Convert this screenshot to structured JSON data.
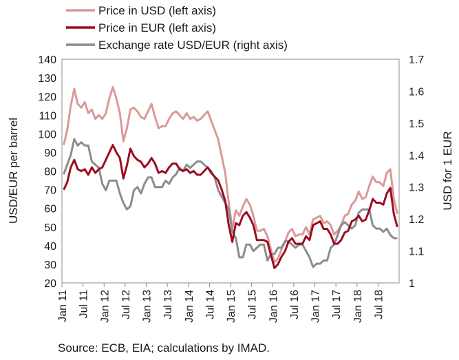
{
  "chart_data": {
    "type": "line",
    "source_note": "Source: ECB, EIA; calculations by IMAD.",
    "ylabel": "USD/EUR per barrel",
    "y2label": "USD for 1 EUR",
    "ylim": [
      20,
      140
    ],
    "y2lim": [
      1.0,
      1.7
    ],
    "y_ticks": [
      "20",
      "30",
      "40",
      "50",
      "60",
      "70",
      "80",
      "90",
      "100",
      "110",
      "120",
      "130",
      "140"
    ],
    "y2_ticks": [
      "1",
      "1.1",
      "1.2",
      "1.3",
      "1.4",
      "1.5",
      "1.6",
      "1.7"
    ],
    "x_tick_labels": [
      "Jan 11",
      "Jul 11",
      "Jan 12",
      "Jul 12",
      "Jan 13",
      "Jul 13",
      "Jan 14",
      "Jul 14",
      "Jan 15",
      "Jul 15",
      "Jan 16",
      "Jul 16",
      "Jan 17",
      "Jul 17",
      "Jan 18",
      "Jul 18"
    ],
    "grid": false,
    "legend_position": "top",
    "x_dates": [
      "2011-01",
      "2011-02",
      "2011-03",
      "2011-04",
      "2011-05",
      "2011-06",
      "2011-07",
      "2011-08",
      "2011-09",
      "2011-10",
      "2011-11",
      "2011-12",
      "2012-01",
      "2012-02",
      "2012-03",
      "2012-04",
      "2012-05",
      "2012-06",
      "2012-07",
      "2012-08",
      "2012-09",
      "2012-10",
      "2012-11",
      "2012-12",
      "2013-01",
      "2013-02",
      "2013-03",
      "2013-04",
      "2013-05",
      "2013-06",
      "2013-07",
      "2013-08",
      "2013-09",
      "2013-10",
      "2013-11",
      "2013-12",
      "2014-01",
      "2014-02",
      "2014-03",
      "2014-04",
      "2014-05",
      "2014-06",
      "2014-07",
      "2014-08",
      "2014-09",
      "2014-10",
      "2014-11",
      "2014-12",
      "2015-01",
      "2015-02",
      "2015-03",
      "2015-04",
      "2015-05",
      "2015-06",
      "2015-07",
      "2015-08",
      "2015-09",
      "2015-10",
      "2015-11",
      "2015-12",
      "2016-01",
      "2016-02",
      "2016-03",
      "2016-04",
      "2016-05",
      "2016-06",
      "2016-07",
      "2016-08",
      "2016-09",
      "2016-10",
      "2016-11",
      "2016-12",
      "2017-01",
      "2017-02",
      "2017-03",
      "2017-04",
      "2017-05",
      "2017-06",
      "2017-07",
      "2017-08",
      "2017-09",
      "2017-10",
      "2017-11",
      "2017-12",
      "2018-01",
      "2018-02",
      "2018-03",
      "2018-04",
      "2018-05",
      "2018-06",
      "2018-07",
      "2018-08",
      "2018-09",
      "2018-10",
      "2018-11",
      "2018-12"
    ],
    "series": [
      {
        "name": "Price in USD (left axis)",
        "color": "#d99a98",
        "axis": "left",
        "values": [
          94,
          102,
          115,
          124,
          116,
          114,
          117,
          111,
          113,
          108,
          110,
          108,
          111,
          119,
          125,
          119,
          111,
          96,
          103,
          113,
          114,
          112,
          109,
          108,
          112,
          116,
          109,
          103,
          104,
          104,
          108,
          111,
          112,
          110,
          108,
          111,
          108,
          109,
          107,
          108,
          110,
          112,
          107,
          102,
          97,
          88,
          79,
          63,
          49,
          59,
          56,
          61,
          65,
          62,
          56,
          48,
          48,
          49,
          45,
          38,
          31,
          33,
          38,
          42,
          47,
          49,
          45,
          46,
          46,
          50,
          46,
          54,
          55,
          56,
          52,
          53,
          51,
          46,
          48,
          51,
          56,
          57,
          62,
          64,
          69,
          65,
          66,
          72,
          77,
          74,
          74,
          72,
          79,
          81,
          65,
          57
        ]
      },
      {
        "name": "Price in EUR (left axis)",
        "color": "#9b0d1e",
        "axis": "left",
        "values": [
          70,
          74,
          82,
          86,
          81,
          80,
          81,
          78,
          82,
          79,
          81,
          82,
          86,
          90,
          94,
          90,
          87,
          76,
          83,
          92,
          88,
          86,
          85,
          82,
          84,
          87,
          84,
          79,
          80,
          79,
          82,
          84,
          84,
          81,
          80,
          81,
          79,
          80,
          78,
          78,
          80,
          82,
          79,
          77,
          75,
          70,
          64,
          51,
          42,
          52,
          51,
          56,
          58,
          55,
          51,
          43,
          43,
          43,
          42,
          35,
          28,
          30,
          34,
          37,
          42,
          44,
          41,
          41,
          41,
          45,
          43,
          51,
          52,
          53,
          49,
          49,
          46,
          41,
          41,
          43,
          47,
          48,
          53,
          54,
          56,
          53,
          54,
          59,
          65,
          63,
          63,
          62,
          68,
          71,
          57,
          50
        ]
      },
      {
        "name": "Exchange rate USD/EUR (right axis)",
        "color": "#8c8c8c",
        "axis": "right",
        "values": [
          1.34,
          1.37,
          1.4,
          1.45,
          1.43,
          1.44,
          1.43,
          1.43,
          1.38,
          1.37,
          1.36,
          1.31,
          1.29,
          1.32,
          1.32,
          1.32,
          1.28,
          1.25,
          1.23,
          1.24,
          1.29,
          1.3,
          1.28,
          1.31,
          1.33,
          1.33,
          1.3,
          1.3,
          1.3,
          1.32,
          1.31,
          1.33,
          1.34,
          1.36,
          1.35,
          1.37,
          1.36,
          1.37,
          1.38,
          1.38,
          1.37,
          1.36,
          1.35,
          1.33,
          1.29,
          1.27,
          1.25,
          1.23,
          1.16,
          1.14,
          1.08,
          1.08,
          1.12,
          1.12,
          1.1,
          1.11,
          1.12,
          1.12,
          1.07,
          1.09,
          1.09,
          1.11,
          1.11,
          1.13,
          1.13,
          1.12,
          1.11,
          1.12,
          1.12,
          1.1,
          1.08,
          1.05,
          1.06,
          1.06,
          1.07,
          1.07,
          1.11,
          1.12,
          1.15,
          1.18,
          1.19,
          1.18,
          1.17,
          1.18,
          1.22,
          1.23,
          1.23,
          1.23,
          1.18,
          1.17,
          1.17,
          1.16,
          1.17,
          1.15,
          1.14,
          1.14
        ]
      }
    ]
  }
}
